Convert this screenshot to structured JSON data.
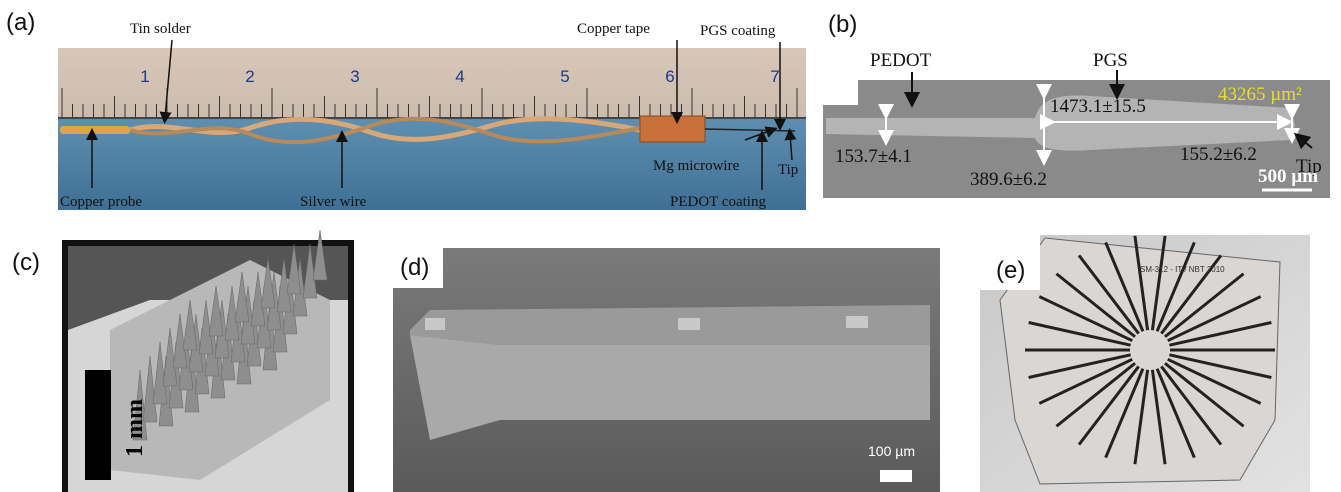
{
  "panels": {
    "a": {
      "label": "(a)",
      "ruler_numbers": [
        "1",
        "2",
        "3",
        "4",
        "5",
        "6",
        "7"
      ],
      "annotations": {
        "tin_solder": "Tin solder",
        "copper_tape": "Copper tape",
        "pgs_coating": "PGS coating",
        "mg_microwire": "Mg microwire",
        "tip": "Tip",
        "copper_probe": "Copper probe",
        "silver_wire": "Silver wire",
        "pedot_coating": "PEDOT coating"
      }
    },
    "b": {
      "label": "(b)",
      "annotations": {
        "pedot": "PEDOT",
        "pgs": "PGS",
        "area": "43265 µm²",
        "pgs_width": "1473.1±15.5",
        "pedot_width": "153.7±4.1",
        "mid_width": "389.6±6.2",
        "tip_width": "155.2±6.2",
        "tip": "Tip",
        "scale_bar": "500 µm"
      }
    },
    "c": {
      "label": "(c)",
      "scale_bar": "1 mm"
    },
    "d": {
      "label": "(d)",
      "scale_bar": "100 µm"
    },
    "e": {
      "label": "(e)",
      "imprint": "SM-312 - IT / NBT 2010"
    }
  }
}
